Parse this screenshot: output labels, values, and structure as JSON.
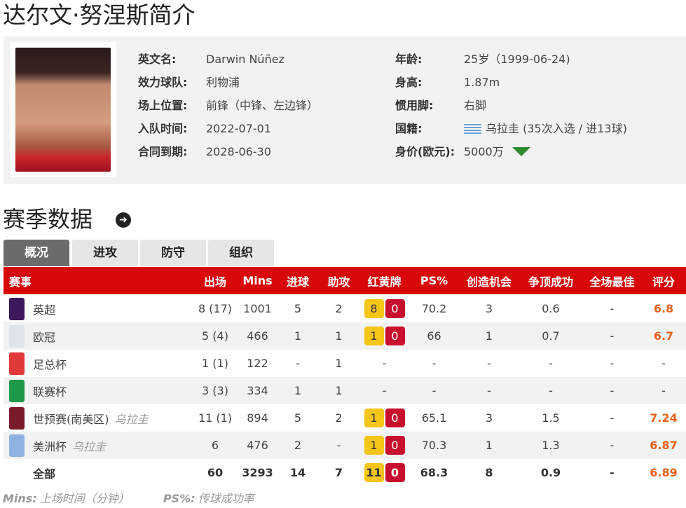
{
  "title": "达尔文·努涅斯简介",
  "profile": {
    "left": [
      {
        "label": "英文名:",
        "value": "Darwin Núñez"
      },
      {
        "label": "效力球队:",
        "value": "利物浦"
      },
      {
        "label": "场上位置:",
        "value": "前锋（中锋、左边锋）"
      },
      {
        "label": "入队时间:",
        "value": "2022-07-01"
      },
      {
        "label": "合同到期:",
        "value": "2028-06-30"
      }
    ],
    "right": [
      {
        "label": "年龄:",
        "value": "25岁（1999-06-24)"
      },
      {
        "label": "身高:",
        "value": "1.87m"
      },
      {
        "label": "惯用脚:",
        "value": "右脚"
      },
      {
        "label": "国籍:",
        "value": "乌拉圭 (35次入选 / 进13球)"
      },
      {
        "label": "身价(欧元):",
        "value": "5000万"
      }
    ],
    "flag_icon": "uruguay-flag",
    "value_trend": "down",
    "trend_color": "#2e8b2e"
  },
  "section_title": "赛季数据",
  "tabs": [
    {
      "label": "概况",
      "active": true
    },
    {
      "label": "进攻"
    },
    {
      "label": "防守"
    },
    {
      "label": "组织"
    }
  ],
  "table": {
    "headers": [
      "赛事",
      "出场",
      "Mins",
      "进球",
      "助攻",
      "红黄牌",
      "PS%",
      "创造机会",
      "争顶成功",
      "全场最佳",
      "评分"
    ],
    "rows": [
      {
        "name": "英超",
        "sub": "",
        "logo": "#3d185c",
        "apps": "8 (17)",
        "mins": "1001",
        "goals": "5",
        "assists": "2",
        "yellow": "8",
        "red": "0",
        "ps": "70.2",
        "chances": "3",
        "aerial": "0.6",
        "motm": "-",
        "rating": "6.8"
      },
      {
        "name": "欧冠",
        "sub": "",
        "logo": "#dfe3ea",
        "apps": "5 (4)",
        "mins": "466",
        "goals": "1",
        "assists": "1",
        "yellow": "1",
        "red": "0",
        "ps": "66",
        "chances": "1",
        "aerial": "0.7",
        "motm": "-",
        "rating": "6.7"
      },
      {
        "name": "足总杯",
        "sub": "",
        "logo": "#e03a3a",
        "apps": "1 (1)",
        "mins": "122",
        "goals": "-",
        "assists": "1",
        "yellow": "",
        "red": "",
        "cards": "-",
        "ps": "-",
        "chances": "-",
        "aerial": "-",
        "motm": "-",
        "rating": "-"
      },
      {
        "name": "联赛杯",
        "sub": "",
        "logo": "#1f9a4a",
        "apps": "3 (3)",
        "mins": "334",
        "goals": "1",
        "assists": "1",
        "yellow": "",
        "red": "",
        "cards": "-",
        "ps": "-",
        "chances": "-",
        "aerial": "-",
        "motm": "-",
        "rating": "-"
      },
      {
        "name": "世预赛(南美区)",
        "sub": "乌拉圭",
        "logo": "#7a1a2a",
        "apps": "11 (1)",
        "mins": "894",
        "goals": "5",
        "assists": "2",
        "yellow": "1",
        "red": "0",
        "ps": "65.1",
        "chances": "3",
        "aerial": "1.5",
        "motm": "-",
        "rating": "7.24"
      },
      {
        "name": "美洲杯",
        "sub": "乌拉圭",
        "logo": "#8fb3e0",
        "apps": "6",
        "mins": "476",
        "goals": "2",
        "assists": "-",
        "yellow": "1",
        "red": "0",
        "ps": "70.3",
        "chances": "1",
        "aerial": "1.3",
        "motm": "-",
        "rating": "6.87"
      }
    ],
    "total": {
      "name": "全部",
      "apps": "60",
      "mins": "3293",
      "goals": "14",
      "assists": "7",
      "yellow": "11",
      "red": "0",
      "ps": "68.3",
      "chances": "8",
      "aerial": "0.9",
      "motm": "-",
      "rating": "6.89"
    }
  },
  "footnote": [
    {
      "key": "Mins:",
      "text": "上场时间（分钟）"
    },
    {
      "key": "PS%:",
      "text": "传球成功率"
    }
  ],
  "colors": {
    "header": "#d7070a",
    "rating": "#e8611a",
    "yellow_card": "#f5c518",
    "red_card": "#c8102e"
  }
}
